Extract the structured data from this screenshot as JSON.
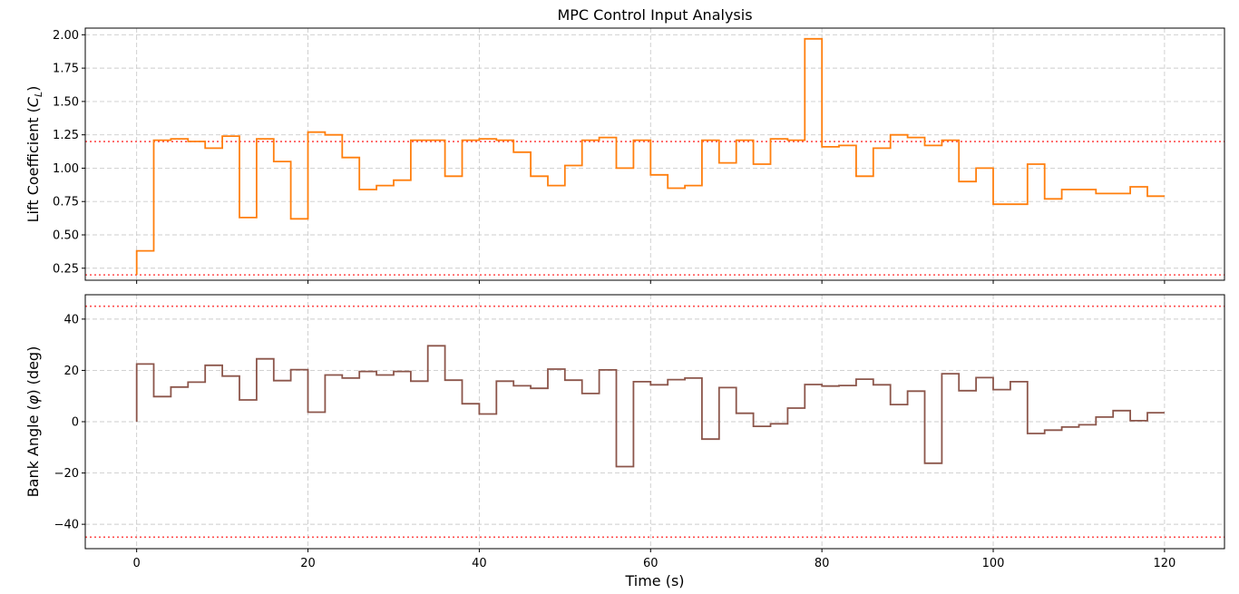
{
  "chart_data": {
    "title": "MPC Control Input Analysis",
    "xlabel": "Time (s)",
    "x_ticks": [
      0,
      20,
      40,
      60,
      80,
      100,
      120
    ],
    "xlim": [
      -6,
      127
    ],
    "grid": true,
    "step_width": 2,
    "panels": [
      {
        "name": "lift",
        "type": "line",
        "ylabel_prefix": "Lift Coefficient (",
        "ylabel_symbol": "C",
        "ylabel_subscript": "L",
        "ylabel_suffix": ")",
        "ylim": [
          0.16,
          2.05
        ],
        "y_ticks": [
          0.25,
          0.5,
          0.75,
          1.0,
          1.25,
          1.5,
          1.75,
          2.0
        ],
        "y_tick_labels": [
          "0.25",
          "0.50",
          "0.75",
          "1.00",
          "1.25",
          "1.50",
          "1.75",
          "2.00"
        ],
        "limits": [
          0.2,
          1.2
        ],
        "limit_color": "#ff4d4d",
        "line_color": "#ff7f0e",
        "series": {
          "start": 0.2,
          "values": [
            0.38,
            1.21,
            1.22,
            1.2,
            1.15,
            1.24,
            0.63,
            1.22,
            1.05,
            0.62,
            1.27,
            1.25,
            1.08,
            0.84,
            0.87,
            0.91,
            1.21,
            1.21,
            0.94,
            1.21,
            1.22,
            1.21,
            1.12,
            0.94,
            0.87,
            1.02,
            1.21,
            1.23,
            1.0,
            1.21,
            0.95,
            0.85,
            0.87,
            1.21,
            1.04,
            1.21,
            1.03,
            1.22,
            1.21,
            1.97,
            1.16,
            1.17,
            0.94,
            1.15,
            1.25,
            1.23,
            1.17,
            1.21,
            0.9,
            1.0,
            0.73,
            0.73,
            1.03,
            0.77,
            0.84,
            0.84,
            0.81,
            0.81,
            0.86,
            0.79
          ]
        }
      },
      {
        "name": "bank",
        "type": "line",
        "ylabel_prefix": "Bank Angle (",
        "ylabel_symbol": "φ",
        "ylabel_subscript": "",
        "ylabel_suffix": ") (deg)",
        "ylim": [
          -49.5,
          49.5
        ],
        "y_ticks": [
          -40,
          -20,
          0,
          20,
          40
        ],
        "y_tick_labels": [
          "−40",
          "−20",
          "0",
          "20",
          "40"
        ],
        "limits": [
          -45,
          45
        ],
        "limit_color": "#ff4d4d",
        "line_color": "#8c564b",
        "series": {
          "start": 0,
          "values": [
            22.5,
            9.8,
            13.5,
            15.4,
            22.0,
            17.8,
            8.5,
            24.5,
            16.0,
            20.3,
            3.7,
            18.2,
            17.0,
            19.6,
            18.2,
            19.6,
            15.8,
            29.6,
            16.2,
            7.0,
            3.0,
            15.8,
            14.0,
            13.0,
            20.5,
            16.2,
            11.0,
            20.2,
            -17.5,
            15.6,
            14.4,
            16.4,
            17.0,
            -6.8,
            13.3,
            3.3,
            -1.8,
            -0.8,
            5.3,
            14.5,
            13.9,
            14.1,
            16.6,
            14.4,
            6.7,
            11.9,
            -16.2,
            18.7,
            12.1,
            17.2,
            12.5,
            15.6,
            -4.6,
            -3.3,
            -2.1,
            -1.2,
            1.8,
            4.3,
            0.4,
            3.5
          ]
        }
      }
    ]
  }
}
